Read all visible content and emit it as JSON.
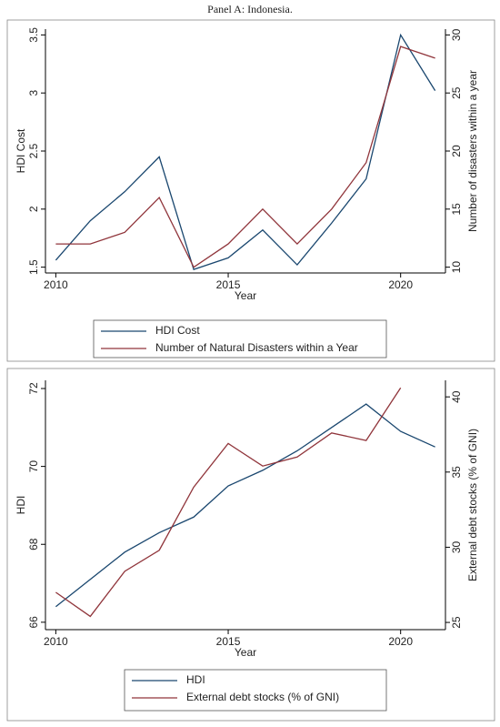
{
  "title": "Panel A: Indonesia.",
  "chart_data": [
    {
      "type": "line",
      "x_label": "Year",
      "y_label": "HDI Cost",
      "y2_label": "Number of disasters within a year",
      "x": [
        2010,
        2011,
        2012,
        2013,
        2014,
        2015,
        2016,
        2017,
        2018,
        2019,
        2020,
        2021
      ],
      "xlim": [
        2009.7,
        2021.3
      ],
      "xticks": [
        2010,
        2015,
        2020
      ],
      "ylim": [
        1.45,
        3.55
      ],
      "yticks": [
        1.5,
        2,
        2.5,
        3,
        3.5
      ],
      "y2lim": [
        9.5,
        30.5
      ],
      "y2ticks": [
        10,
        15,
        20,
        25,
        30
      ],
      "series": [
        {
          "name": "HDI Cost",
          "color": "#1a476f",
          "values": [
            1.56,
            1.9,
            2.15,
            2.45,
            1.48,
            1.58,
            1.82,
            1.52,
            1.88,
            2.26,
            3.5,
            3.02
          ]
        },
        {
          "name": "Number of Natural Disasters within a Year",
          "color": "#90353b",
          "axis": "y2",
          "values": [
            12,
            12,
            13,
            16,
            10,
            12,
            15,
            12,
            15,
            19,
            29,
            28
          ]
        }
      ]
    },
    {
      "type": "line",
      "x_label": "Year",
      "y_label": "HDI",
      "y2_label": "External debt stocks (% of GNI)",
      "x": [
        2010,
        2011,
        2012,
        2013,
        2014,
        2015,
        2016,
        2017,
        2018,
        2019,
        2020,
        2021
      ],
      "xlim": [
        2009.7,
        2021.3
      ],
      "xticks": [
        2010,
        2015,
        2020
      ],
      "ylim": [
        65.81,
        72.21
      ],
      "yticks": [
        66,
        68,
        70,
        72
      ],
      "y2lim": [
        24.52,
        41.1
      ],
      "y2ticks": [
        25,
        30,
        35,
        40
      ],
      "series": [
        {
          "name": "HDI",
          "color": "#1a476f",
          "values": [
            66.4,
            67.1,
            67.8,
            68.3,
            68.7,
            69.5,
            69.9,
            70.4,
            71.0,
            71.6,
            70.9,
            70.5
          ]
        },
        {
          "name": "External debt stocks (% of GNI)",
          "color": "#90353b",
          "axis": "y2",
          "values": [
            27.0,
            25.4,
            28.4,
            29.8,
            34.0,
            36.9,
            35.4,
            36.0,
            37.6,
            37.1,
            40.6,
            null
          ]
        }
      ]
    }
  ]
}
